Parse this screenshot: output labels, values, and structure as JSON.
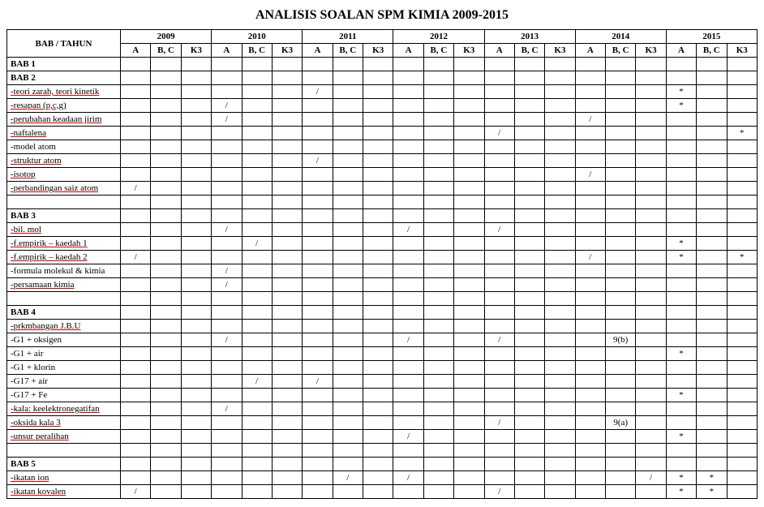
{
  "title": "ANALISIS SOALAN SPM KIMIA 2009-2015",
  "header": {
    "rowLabel": "BAB / TAHUN",
    "years": [
      "2009",
      "2010",
      "2011",
      "2012",
      "2013",
      "2014",
      "2015"
    ],
    "subs": [
      "A",
      "B, C",
      "K3"
    ]
  },
  "rows": [
    {
      "label": "BAB 1",
      "bold": true,
      "cells": [
        "",
        "",
        "",
        "",
        "",
        "",
        "",
        "",
        "",
        "",
        "",
        "",
        "",
        "",
        "",
        "",
        "",
        "",
        "",
        "",
        ""
      ]
    },
    {
      "label": "BAB 2",
      "bold": true,
      "cells": [
        "",
        "",
        "",
        "",
        "",
        "",
        "",
        "",
        "",
        "",
        "",
        "",
        "",
        "",
        "",
        "",
        "",
        "",
        "",
        "",
        ""
      ]
    },
    {
      "label": "-teori zarah, teori kinetik",
      "red": true,
      "cells": [
        "",
        "",
        "",
        "",
        "",
        "",
        "/",
        "",
        "",
        "",
        "",
        "",
        "",
        "",
        "",
        "",
        "",
        "",
        "*",
        "",
        ""
      ]
    },
    {
      "label": "-resapan (p,c,g)",
      "red": true,
      "cells": [
        "",
        "",
        "",
        "/",
        "",
        "",
        "",
        "",
        "",
        "",
        "",
        "",
        "",
        "",
        "",
        "",
        "",
        "",
        "*",
        "",
        ""
      ]
    },
    {
      "label": "-perubahan keadaan jirim",
      "red": true,
      "cells": [
        "",
        "",
        "",
        "/",
        "",
        "",
        "",
        "",
        "",
        "",
        "",
        "",
        "",
        "",
        "",
        "/",
        "",
        "",
        "",
        "",
        ""
      ]
    },
    {
      "label": "-naftalena",
      "red": true,
      "cells": [
        "",
        "",
        "",
        "",
        "",
        "",
        "",
        "",
        "",
        "",
        "",
        "",
        "/",
        "",
        "",
        "",
        "",
        "",
        "",
        "",
        "*"
      ]
    },
    {
      "label": "-model atom",
      "cells": [
        "",
        "",
        "",
        "",
        "",
        "",
        "",
        "",
        "",
        "",
        "",
        "",
        "",
        "",
        "",
        "",
        "",
        "",
        "",
        "",
        ""
      ]
    },
    {
      "label": "-struktur atom",
      "red": true,
      "cells": [
        "",
        "",
        "",
        "",
        "",
        "",
        "/",
        "",
        "",
        "",
        "",
        "",
        "",
        "",
        "",
        "",
        "",
        "",
        "",
        "",
        ""
      ]
    },
    {
      "label": "-isotop",
      "red": true,
      "cells": [
        "",
        "",
        "",
        "",
        "",
        "",
        "",
        "",
        "",
        "",
        "",
        "",
        "",
        "",
        "",
        "/",
        "",
        "",
        "",
        "",
        ""
      ]
    },
    {
      "label": "-perbandingan saiz atom",
      "red": true,
      "cells": [
        "/",
        "",
        "",
        "",
        "",
        "",
        "",
        "",
        "",
        "",
        "",
        "",
        "",
        "",
        "",
        "",
        "",
        "",
        "",
        "",
        ""
      ]
    },
    {
      "spacer": true
    },
    {
      "label": "BAB 3",
      "bold": true,
      "cells": [
        "",
        "",
        "",
        "",
        "",
        "",
        "",
        "",
        "",
        "",
        "",
        "",
        "",
        "",
        "",
        "",
        "",
        "",
        "",
        "",
        ""
      ]
    },
    {
      "label": "-bil. mol",
      "red": true,
      "cells": [
        "",
        "",
        "",
        "/",
        "",
        "",
        "",
        "",
        "",
        "/",
        "",
        "",
        "/",
        "",
        "",
        "",
        "",
        "",
        "",
        "",
        ""
      ]
    },
    {
      "label": "-f.empirik – kaedah 1",
      "red": true,
      "cells": [
        "",
        "",
        "",
        "",
        "/",
        "",
        "",
        "",
        "",
        "",
        "",
        "",
        "",
        "",
        "",
        "",
        "",
        "",
        "*",
        "",
        ""
      ]
    },
    {
      "label": "-f.empirik – kaedah 2",
      "red": true,
      "cells": [
        "/",
        "",
        "",
        "",
        "",
        "",
        "",
        "",
        "",
        "",
        "",
        "",
        "",
        "",
        "",
        "/",
        "",
        "",
        "*",
        "",
        "*"
      ]
    },
    {
      "label": "-formula molekul & kimia",
      "cells": [
        "",
        "",
        "",
        "/",
        "",
        "",
        "",
        "",
        "",
        "",
        "",
        "",
        "",
        "",
        "",
        "",
        "",
        "",
        "",
        "",
        ""
      ]
    },
    {
      "label": "-persamaan kimia",
      "red": true,
      "cells": [
        "",
        "",
        "",
        "/",
        "",
        "",
        "",
        "",
        "",
        "",
        "",
        "",
        "",
        "",
        "",
        "",
        "",
        "",
        "",
        "",
        ""
      ]
    },
    {
      "spacer": true
    },
    {
      "label": "BAB 4",
      "bold": true,
      "cells": [
        "",
        "",
        "",
        "",
        "",
        "",
        "",
        "",
        "",
        "",
        "",
        "",
        "",
        "",
        "",
        "",
        "",
        "",
        "",
        "",
        ""
      ]
    },
    {
      "label": "-prkmbangan J.B.U",
      "red": true,
      "cells": [
        "",
        "",
        "",
        "",
        "",
        "",
        "",
        "",
        "",
        "",
        "",
        "",
        "",
        "",
        "",
        "",
        "",
        "",
        "",
        "",
        ""
      ]
    },
    {
      "label": "-G1 + oksigen",
      "cells": [
        "",
        "",
        "",
        "/",
        "",
        "",
        "",
        "",
        "",
        "/",
        "",
        "",
        "/",
        "",
        "",
        "",
        "9(b)",
        "",
        "",
        "",
        ""
      ]
    },
    {
      "label": "-G1 + air",
      "cells": [
        "",
        "",
        "",
        "",
        "",
        "",
        "",
        "",
        "",
        "",
        "",
        "",
        "",
        "",
        "",
        "",
        "",
        "",
        "*",
        "",
        ""
      ]
    },
    {
      "label": "-G1 + klorin",
      "cells": [
        "",
        "",
        "",
        "",
        "",
        "",
        "",
        "",
        "",
        "",
        "",
        "",
        "",
        "",
        "",
        "",
        "",
        "",
        "",
        "",
        ""
      ]
    },
    {
      "label": "-G17 + air",
      "cells": [
        "",
        "",
        "",
        "",
        "/",
        "",
        "/",
        "",
        "",
        "",
        "",
        "",
        "",
        "",
        "",
        "",
        "",
        "",
        "",
        "",
        ""
      ]
    },
    {
      "label": "-G17 + Fe",
      "cells": [
        "",
        "",
        "",
        "",
        "",
        "",
        "",
        "",
        "",
        "",
        "",
        "",
        "",
        "",
        "",
        "",
        "",
        "",
        "*",
        "",
        ""
      ]
    },
    {
      "label": "-kala: keelektronegatifan",
      "red": true,
      "cells": [
        "",
        "",
        "",
        "/",
        "",
        "",
        "",
        "",
        "",
        "",
        "",
        "",
        "",
        "",
        "",
        "",
        "",
        "",
        "",
        "",
        ""
      ]
    },
    {
      "label": "-oksida kala 3",
      "red": true,
      "cells": [
        "",
        "",
        "",
        "",
        "",
        "",
        "",
        "",
        "",
        "",
        "",
        "",
        "/",
        "",
        "",
        "",
        "9(a)",
        "",
        "",
        "",
        ""
      ]
    },
    {
      "label": "-unsur peralihan",
      "red": true,
      "cells": [
        "",
        "",
        "",
        "",
        "",
        "",
        "",
        "",
        "",
        "/",
        "",
        "",
        "",
        "",
        "",
        "",
        "",
        "",
        "*",
        "",
        ""
      ]
    },
    {
      "spacer": true
    },
    {
      "label": "BAB 5",
      "bold": true,
      "cells": [
        "",
        "",
        "",
        "",
        "",
        "",
        "",
        "",
        "",
        "",
        "",
        "",
        "",
        "",
        "",
        "",
        "",
        "",
        "",
        "",
        ""
      ]
    },
    {
      "label": "-ikatan ion",
      "red": true,
      "cells": [
        "",
        "",
        "",
        "",
        "",
        "",
        "",
        "/",
        "",
        "/",
        "",
        "",
        "",
        "",
        "",
        "",
        "",
        "/",
        "*",
        "*",
        ""
      ]
    },
    {
      "label": "-ikatan kovalen",
      "red": true,
      "cells": [
        "/",
        "",
        "",
        "",
        "",
        "",
        "",
        "",
        "",
        "",
        "",
        "",
        "/",
        "",
        "",
        "",
        "",
        "",
        "*",
        "*",
        ""
      ]
    }
  ]
}
